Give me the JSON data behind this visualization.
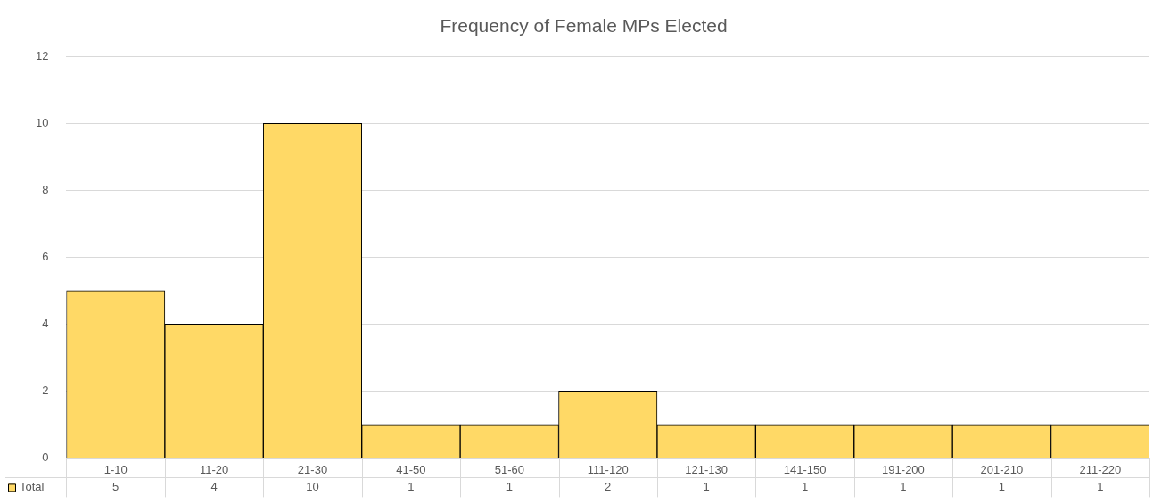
{
  "chart_data": {
    "type": "bar",
    "title": "Frequency of Female MPs Elected",
    "categories": [
      "1-10",
      "11-20",
      "21-30",
      "41-50",
      "51-60",
      "111-120",
      "121-130",
      "141-150",
      "191-200",
      "201-210",
      "211-220"
    ],
    "series": [
      {
        "name": "Total",
        "color": "#ffd966",
        "values": [
          5,
          4,
          10,
          1,
          1,
          2,
          1,
          1,
          1,
          1,
          1
        ]
      }
    ],
    "ylim": [
      0,
      12
    ],
    "yticks": [
      0,
      2,
      4,
      6,
      8,
      10,
      12
    ],
    "grid": "y",
    "data_labels": true
  }
}
